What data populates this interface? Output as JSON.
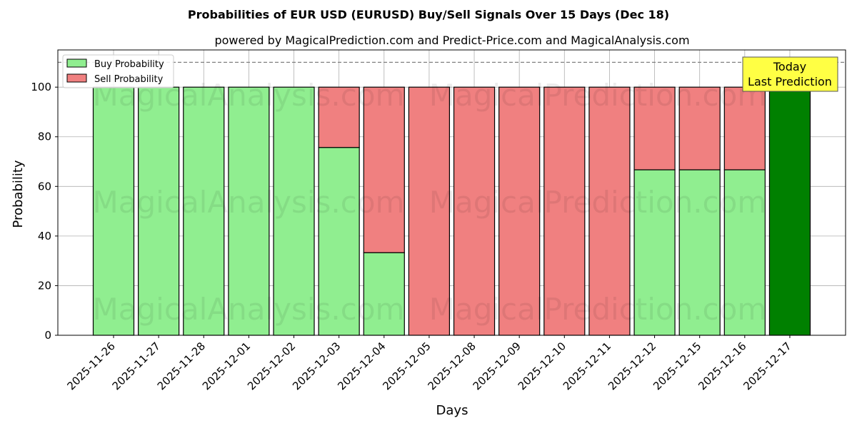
{
  "chart_data": {
    "type": "bar",
    "stacked": true,
    "title": "Probabilities of EUR USD (EURUSD) Buy/Sell Signals Over 15 Days (Dec 18)",
    "subtitle": "powered by MagicalPrediction.com and Predict-Price.com and MagicalAnalysis.com",
    "xlabel": "Days",
    "ylabel": "Probability",
    "ylim": [
      0,
      115
    ],
    "yticks": [
      0,
      20,
      40,
      60,
      80,
      100
    ],
    "grid": true,
    "legend_position": "top-left",
    "reference_line": 110,
    "categories": [
      "2025-11-26",
      "2025-11-27",
      "2025-11-28",
      "2025-12-01",
      "2025-12-02",
      "2025-12-03",
      "2025-12-04",
      "2025-12-05",
      "2025-12-08",
      "2025-12-09",
      "2025-12-10",
      "2025-12-11",
      "2025-12-12",
      "2025-12-15",
      "2025-12-16",
      "2025-12-17"
    ],
    "series": [
      {
        "name": "Buy Probability",
        "color": "#90ee90",
        "values": [
          100,
          100,
          100,
          100,
          100,
          75.7,
          33.3,
          0,
          0,
          0,
          0,
          0,
          66.7,
          66.7,
          66.7,
          100
        ]
      },
      {
        "name": "Sell Probability",
        "color": "#f08080",
        "values": [
          0,
          0,
          0,
          0,
          0,
          24.3,
          66.7,
          100,
          100,
          100,
          100,
          100,
          33.3,
          33.3,
          33.3,
          0
        ]
      }
    ],
    "highlight": {
      "category": "2025-12-17",
      "color": "#008000"
    },
    "annotation": {
      "line1": "Today",
      "line2": "Last Prediction",
      "background": "#ffff44"
    },
    "watermarks": [
      "MagicalAnalysis.com",
      "MagicalPrediction.com"
    ]
  }
}
